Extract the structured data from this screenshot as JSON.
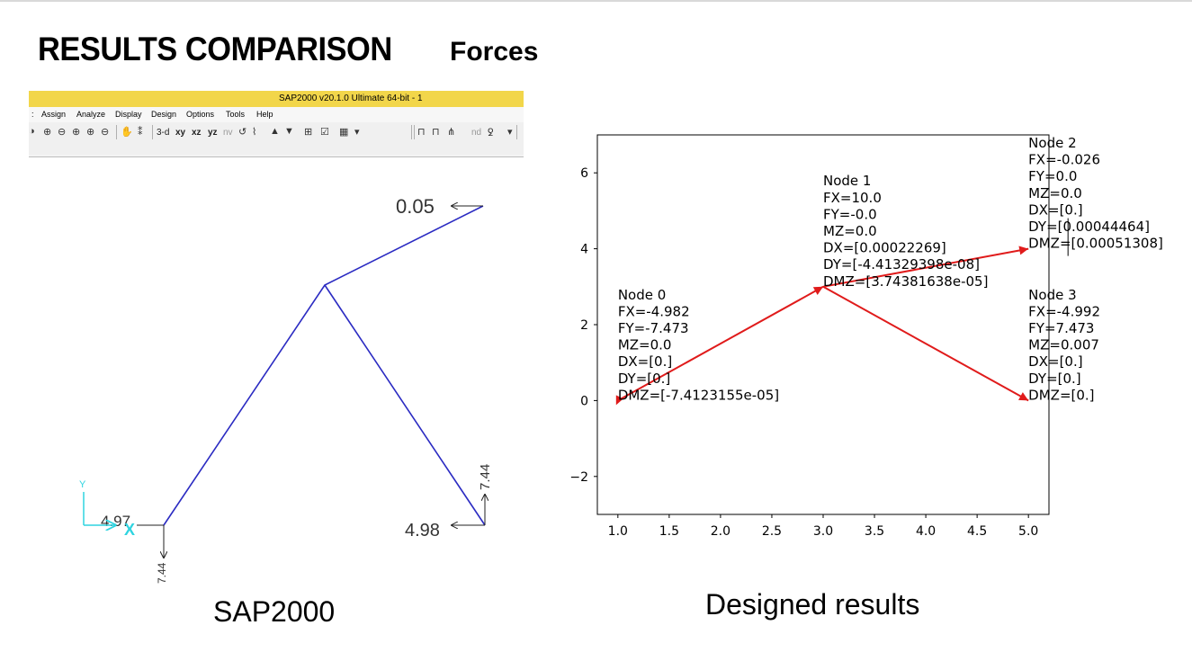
{
  "slide": {
    "title": "RESULTS COMPARISON",
    "subtitle": "Forces",
    "caption_left": "SAP2000",
    "caption_right": "Designed results"
  },
  "sap": {
    "window_title": "SAP2000 v20.1.0 Ultimate 64-bit - 1",
    "menu": [
      ":",
      "Assign",
      "Analyze",
      "Display",
      "Design",
      "Options",
      "Tools",
      "Help"
    ],
    "toolbar_text": [
      "3-d",
      "xy",
      "xz",
      "yz",
      "nv",
      "nd"
    ],
    "icons": [
      "rubber-band-zoom-icon",
      "zoom-in-icon",
      "zoom-out-icon",
      "zoom-restore-icon",
      "pan-icon",
      "refresh-icon",
      "move-up-icon",
      "move-down-icon",
      "show-grid-icon",
      "check-icon",
      "frame-icon",
      "dropdown-icon"
    ],
    "labels": {
      "top_right_force": "0.05",
      "left_horizontal": "4.97",
      "left_vertical": "7.44",
      "right_horizontal": "4.98",
      "right_vertical": "7.44",
      "axis_y": "Y",
      "axis_x": "X"
    },
    "colors": {
      "frame": "#2b2bc2",
      "axis": "#2fd4e0",
      "arrow": "#222222"
    }
  },
  "chart_data": {
    "type": "line",
    "x": [
      1.0,
      3.0,
      5.0,
      3.0,
      5.0
    ],
    "series": [
      {
        "segments": [
          [
            [
              1,
              0
            ],
            [
              3,
              3
            ]
          ],
          [
            [
              3,
              3
            ],
            [
              5,
              4
            ]
          ],
          [
            [
              3,
              3
            ],
            [
              5,
              0
            ]
          ]
        ],
        "color": "#e01b1b"
      }
    ],
    "xlim": [
      0.8,
      5.2
    ],
    "ylim": [
      -3,
      7
    ],
    "xticks": [
      "1.0",
      "1.5",
      "2.0",
      "2.5",
      "3.0",
      "3.5",
      "4.0",
      "4.5",
      "5.0"
    ],
    "yticks": [
      "−2",
      "0",
      "2",
      "4",
      "6"
    ],
    "grid": false,
    "annotations": [
      {
        "node": 0,
        "x": 1,
        "y": 0,
        "lines": [
          "Node 0",
          "FX=-4.982",
          "FY=-7.473",
          "MZ=0.0",
          "DX=[0.]",
          "DY=[0.]",
          "DMZ=[-7.4123155e-05]"
        ]
      },
      {
        "node": 1,
        "x": 3,
        "y": 3,
        "lines": [
          "Node 1",
          "FX=10.0",
          "FY=-0.0",
          "MZ=0.0",
          "DX=[0.00022269]",
          "DY=[-4.41329398e-08]",
          "DMZ=[3.74381638e-05]"
        ]
      },
      {
        "node": 2,
        "x": 5,
        "y": 4,
        "lines": [
          "Node 2",
          "FX=-0.026",
          "FY=0.0",
          "MZ=0.0",
          "DX=[0.]",
          "DY=[0.00044464]",
          "DMZ=[0.00051308]"
        ]
      },
      {
        "node": 3,
        "x": 5,
        "y": 0,
        "lines": [
          "Node 3",
          "FX=-4.992",
          "FY=7.473",
          "MZ=0.007",
          "DX=[0.]",
          "DY=[0.]",
          "DMZ=[0.]"
        ]
      }
    ]
  }
}
